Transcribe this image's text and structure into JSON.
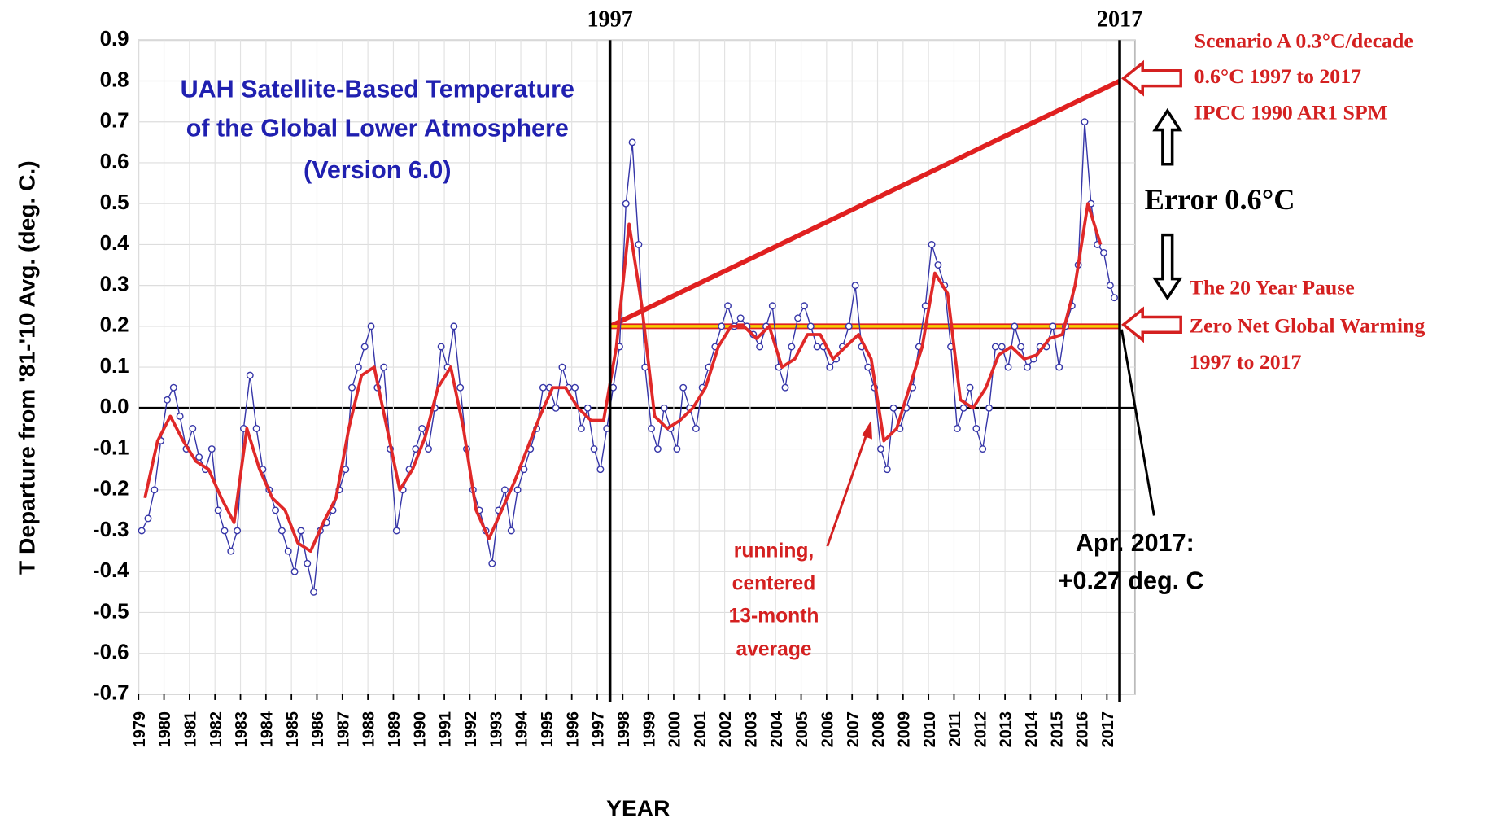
{
  "chart_data": {
    "type": "line",
    "title": [
      "UAH Satellite-Based Temperature",
      "of the Global Lower Atmosphere",
      "(Version 6.0)"
    ],
    "y_label": "T Departure from '81-'10 Avg. (deg. C.)",
    "x_label": "YEAR",
    "xlim": [
      1979,
      2018.1
    ],
    "ylim": [
      -0.7,
      0.9
    ],
    "xticks": [
      1979,
      1980,
      1981,
      1982,
      1983,
      1984,
      1985,
      1986,
      1987,
      1988,
      1989,
      1990,
      1991,
      1992,
      1993,
      1994,
      1995,
      1996,
      1997,
      1998,
      1999,
      2000,
      2001,
      2002,
      2003,
      2004,
      2005,
      2006,
      2007,
      2008,
      2009,
      2010,
      2011,
      2012,
      2013,
      2014,
      2015,
      2016,
      2017
    ],
    "yticks": [
      0.9,
      0.8,
      0.7,
      0.6,
      0.5,
      0.4,
      0.3,
      0.2,
      0.1,
      {
        "value": 0,
        "label": "0.0"
      },
      -0.1,
      -0.2,
      -0.3,
      -0.4,
      -0.5,
      -0.6,
      -0.7
    ],
    "grid": true,
    "series": [
      {
        "color": "#3636a8",
        "markers": true,
        "x": [
          1979.125,
          1979.375,
          1979.625,
          1979.875,
          1980.125,
          1980.375,
          1980.625,
          1980.875,
          1981.125,
          1981.375,
          1981.625,
          1981.875,
          1982.125,
          1982.375,
          1982.625,
          1982.875,
          1983.125,
          1983.375,
          1983.625,
          1983.875,
          1984.125,
          1984.375,
          1984.625,
          1984.875,
          1985.125,
          1985.375,
          1985.625,
          1985.875,
          1986.125,
          1986.375,
          1986.625,
          1986.875,
          1987.125,
          1987.375,
          1987.625,
          1987.875,
          1988.125,
          1988.375,
          1988.625,
          1988.875,
          1989.125,
          1989.375,
          1989.625,
          1989.875,
          1990.125,
          1990.375,
          1990.625,
          1990.875,
          1991.125,
          1991.375,
          1991.625,
          1991.875,
          1992.125,
          1992.375,
          1992.625,
          1992.875,
          1993.125,
          1993.375,
          1993.625,
          1993.875,
          1994.125,
          1994.375,
          1994.625,
          1994.875,
          1995.125,
          1995.375,
          1995.625,
          1995.875,
          1996.125,
          1996.375,
          1996.625,
          1996.875,
          1997.125,
          1997.375,
          1997.625,
          1997.875,
          1998.125,
          1998.375,
          1998.625,
          1998.875,
          1999.125,
          1999.375,
          1999.625,
          1999.875,
          2000.125,
          2000.375,
          2000.625,
          2000.875,
          2001.125,
          2001.375,
          2001.625,
          2001.875,
          2002.125,
          2002.375,
          2002.625,
          2002.875,
          2003.125,
          2003.375,
          2003.625,
          2003.875,
          2004.125,
          2004.375,
          2004.625,
          2004.875,
          2005.125,
          2005.375,
          2005.625,
          2005.875,
          2006.125,
          2006.375,
          2006.625,
          2006.875,
          2007.125,
          2007.375,
          2007.625,
          2007.875,
          2008.125,
          2008.375,
          2008.625,
          2008.875,
          2009.125,
          2009.375,
          2009.625,
          2009.875,
          2010.125,
          2010.375,
          2010.625,
          2010.875,
          2011.125,
          2011.375,
          2011.625,
          2011.875,
          2012.125,
          2012.375,
          2012.625,
          2012.875,
          2013.125,
          2013.375,
          2013.625,
          2013.875,
          2014.125,
          2014.375,
          2014.625,
          2014.875,
          2015.125,
          2015.375,
          2015.625,
          2015.875,
          2016.125,
          2016.375,
          2016.625,
          2016.875,
          2017.125,
          2017.29
        ],
        "values": [
          -0.3,
          -0.27,
          -0.2,
          -0.08,
          0.02,
          0.05,
          -0.02,
          -0.1,
          -0.05,
          -0.12,
          -0.15,
          -0.1,
          -0.25,
          -0.3,
          -0.35,
          -0.3,
          -0.05,
          0.08,
          -0.05,
          -0.15,
          -0.2,
          -0.25,
          -0.3,
          -0.35,
          -0.4,
          -0.3,
          -0.38,
          -0.45,
          -0.3,
          -0.28,
          -0.25,
          -0.2,
          -0.15,
          0.05,
          0.1,
          0.15,
          0.2,
          0.05,
          0.1,
          -0.1,
          -0.3,
          -0.2,
          -0.15,
          -0.1,
          -0.05,
          -0.1,
          0.0,
          0.15,
          0.1,
          0.2,
          0.05,
          -0.1,
          -0.2,
          -0.25,
          -0.3,
          -0.38,
          -0.25,
          -0.2,
          -0.3,
          -0.2,
          -0.15,
          -0.1,
          -0.05,
          0.05,
          0.05,
          0.0,
          0.1,
          0.05,
          0.05,
          -0.05,
          0.0,
          -0.1,
          -0.15,
          -0.05,
          0.05,
          0.15,
          0.5,
          0.65,
          0.4,
          0.1,
          -0.05,
          -0.1,
          0.0,
          -0.05,
          -0.1,
          0.05,
          0.0,
          -0.05,
          0.05,
          0.1,
          0.15,
          0.2,
          0.25,
          0.2,
          0.22,
          0.2,
          0.18,
          0.15,
          0.2,
          0.25,
          0.1,
          0.05,
          0.15,
          0.22,
          0.25,
          0.2,
          0.15,
          0.15,
          0.1,
          0.12,
          0.15,
          0.2,
          0.3,
          0.15,
          0.1,
          0.05,
          -0.1,
          -0.15,
          0.0,
          -0.05,
          0.0,
          0.05,
          0.15,
          0.25,
          0.4,
          0.35,
          0.3,
          0.15,
          -0.05,
          0.0,
          0.05,
          -0.05,
          -0.1,
          0.0,
          0.15,
          0.15,
          0.1,
          0.2,
          0.15,
          0.1,
          0.12,
          0.15,
          0.15,
          0.2,
          0.1,
          0.2,
          0.25,
          0.35,
          0.7,
          0.5,
          0.4,
          0.38,
          0.3,
          0.27
        ]
      },
      {
        "color": "#e02828",
        "markers": false,
        "x": [
          1979.25,
          1979.75,
          1980.25,
          1980.75,
          1981.25,
          1981.75,
          1982.25,
          1982.75,
          1983.25,
          1983.75,
          1984.25,
          1984.75,
          1985.25,
          1985.75,
          1986.25,
          1986.75,
          1987.25,
          1987.75,
          1988.25,
          1988.75,
          1989.25,
          1989.75,
          1990.25,
          1990.75,
          1991.25,
          1991.75,
          1992.25,
          1992.75,
          1993.25,
          1993.75,
          1994.25,
          1994.75,
          1995.25,
          1995.75,
          1996.25,
          1996.75,
          1997.25,
          1997.75,
          1998.25,
          1998.75,
          1999.25,
          1999.75,
          2000.25,
          2000.75,
          2001.25,
          2001.75,
          2002.25,
          2002.75,
          2003.25,
          2003.75,
          2004.25,
          2004.75,
          2005.25,
          2005.75,
          2006.25,
          2006.75,
          2007.25,
          2007.75,
          2008.25,
          2008.75,
          2009.25,
          2009.75,
          2010.25,
          2010.75,
          2011.25,
          2011.75,
          2012.25,
          2012.75,
          2013.25,
          2013.75,
          2014.25,
          2014.75,
          2015.25,
          2015.75,
          2016.25,
          2016.75
        ],
        "values": [
          -0.22,
          -0.08,
          -0.02,
          -0.08,
          -0.13,
          -0.15,
          -0.22,
          -0.28,
          -0.05,
          -0.15,
          -0.22,
          -0.25,
          -0.33,
          -0.35,
          -0.28,
          -0.22,
          -0.05,
          0.08,
          0.1,
          -0.05,
          -0.2,
          -0.15,
          -0.07,
          0.05,
          0.1,
          -0.05,
          -0.25,
          -0.32,
          -0.25,
          -0.18,
          -0.1,
          -0.02,
          0.05,
          0.05,
          0.0,
          -0.03,
          -0.03,
          0.15,
          0.45,
          0.25,
          -0.02,
          -0.05,
          -0.03,
          0.0,
          0.05,
          0.15,
          0.2,
          0.2,
          0.17,
          0.2,
          0.1,
          0.12,
          0.18,
          0.18,
          0.12,
          0.15,
          0.18,
          0.12,
          -0.08,
          -0.05,
          0.05,
          0.15,
          0.33,
          0.28,
          0.02,
          0.0,
          0.05,
          0.13,
          0.15,
          0.12,
          0.13,
          0.17,
          0.18,
          0.3,
          0.5,
          0.4
        ]
      }
    ],
    "reference_lines": [
      {
        "x": 1997.5,
        "label": "1997"
      },
      {
        "x": 2017.5,
        "label": "2017"
      }
    ],
    "trend_lines": [
      {
        "x": [
          1997.5,
          2017.5
        ],
        "values": [
          0.2,
          0.8
        ],
        "color": "#e02020"
      },
      {
        "x": [
          1997.5,
          2017.5
        ],
        "values": [
          0.2,
          0.2
        ],
        "color": "#f5d000"
      }
    ],
    "annotations": {
      "scenario": [
        "Scenario A 0.3°C/decade",
        "0.6°C 1997 to 2017",
        "IPCC 1990 AR1 SPM"
      ],
      "error": "Error 0.6°C",
      "pause": [
        "The 20 Year Pause",
        "Zero Net Global Warming",
        "1997 to 2017"
      ],
      "running": [
        "running,",
        "centered",
        "13-month",
        "average"
      ],
      "latest": [
        "Apr. 2017:",
        "+0.27 deg. C"
      ]
    }
  }
}
